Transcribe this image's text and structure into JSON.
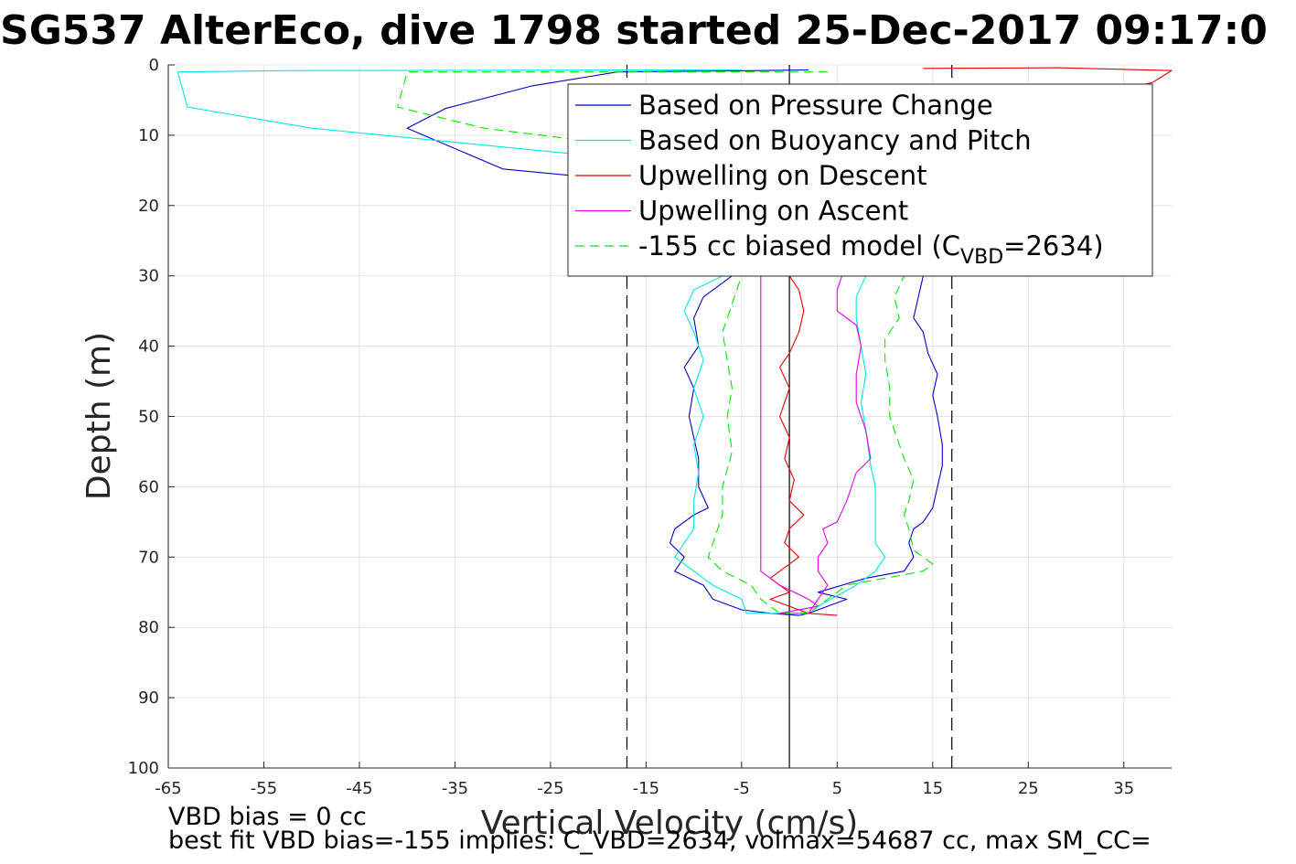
{
  "chart_data": {
    "type": "line",
    "title": "SG537 AlterEco, dive 1798 started 25-Dec-2017 09:17:0",
    "xlabel": "Vertical Velocity (cm/s)",
    "ylabel": "Depth (m)",
    "xlim": [
      -65,
      40
    ],
    "ylim": [
      100,
      0
    ],
    "y_reversed": true,
    "grid": true,
    "legend_position": "top-right",
    "x_ticks": [
      "-65",
      "-55",
      "-45",
      "-35",
      "-25",
      "-15",
      "-5",
      "5",
      "15",
      "25",
      "35"
    ],
    "y_ticks": [
      "0",
      "10",
      "20",
      "30",
      "40",
      "50",
      "60",
      "70",
      "80",
      "90",
      "100"
    ],
    "reference_lines": [
      {
        "name": "zero",
        "x": 0,
        "style": "solid",
        "color": "#000000"
      },
      {
        "name": "left-limit",
        "x": -17,
        "style": "dashed",
        "color": "#000000"
      },
      {
        "name": "right-limit",
        "x": 17,
        "style": "dashed",
        "color": "#000000"
      }
    ],
    "series": [
      {
        "name": "Based on Pressure Change",
        "color": "#0000cc",
        "style": "solid",
        "points": [
          [
            2,
            0.7
          ],
          [
            -3,
            0.8
          ],
          [
            -18,
            1
          ],
          [
            -27,
            3
          ],
          [
            -36,
            6.2
          ],
          [
            -40,
            9
          ],
          [
            -30,
            14.8
          ],
          [
            -13,
            17
          ],
          [
            -5,
            19
          ],
          [
            -6,
            25
          ],
          [
            -8,
            28
          ],
          [
            -6,
            30
          ],
          [
            -9,
            33
          ],
          [
            -10,
            36
          ],
          [
            -9.5,
            40
          ],
          [
            -11,
            43
          ],
          [
            -10,
            46
          ],
          [
            -10.5,
            50
          ],
          [
            -10,
            53
          ],
          [
            -9.5,
            56
          ],
          [
            -9.5,
            60
          ],
          [
            -8.5,
            63
          ],
          [
            -10,
            64
          ],
          [
            -12,
            66
          ],
          [
            -12.5,
            68
          ],
          [
            -11,
            70
          ],
          [
            -12,
            72
          ],
          [
            -9,
            74
          ],
          [
            -8,
            76
          ],
          [
            -6,
            77
          ],
          [
            -5,
            77.5
          ],
          [
            -2,
            78
          ],
          [
            1,
            78.3
          ],
          [
            2,
            78
          ],
          [
            4,
            77
          ],
          [
            6,
            76
          ],
          [
            3,
            75
          ],
          [
            8,
            73
          ],
          [
            12,
            72
          ],
          [
            13,
            70
          ],
          [
            12.5,
            68
          ],
          [
            13,
            66
          ],
          [
            14,
            65
          ],
          [
            15,
            63
          ],
          [
            15.5,
            60
          ],
          [
            16,
            57
          ],
          [
            16,
            54
          ],
          [
            15.5,
            50
          ],
          [
            15,
            47
          ],
          [
            15.5,
            44
          ],
          [
            14.5,
            41
          ],
          [
            14,
            38
          ],
          [
            13,
            36
          ],
          [
            13.5,
            33
          ],
          [
            14,
            30
          ]
        ]
      },
      {
        "name": "Based on Buoyancy and Pitch",
        "color": "#00e6e6",
        "style": "solid",
        "points": [
          [
            -5,
            0.7
          ],
          [
            -52,
            0.8
          ],
          [
            -64,
            1
          ],
          [
            -63,
            6
          ],
          [
            -50,
            9
          ],
          [
            -20,
            13
          ],
          [
            -10,
            14
          ],
          [
            -10,
            20
          ],
          [
            -7,
            28
          ],
          [
            -7,
            30
          ],
          [
            -10,
            32
          ],
          [
            -11,
            35
          ],
          [
            -10,
            38
          ],
          [
            -9,
            42
          ],
          [
            -10,
            46
          ],
          [
            -9,
            50
          ],
          [
            -10,
            54
          ],
          [
            -9.5,
            58
          ],
          [
            -10,
            62
          ],
          [
            -10,
            66
          ],
          [
            -12,
            70
          ],
          [
            -10,
            72
          ],
          [
            -8,
            74
          ],
          [
            -5,
            76
          ],
          [
            -4.5,
            78
          ],
          [
            -1,
            78
          ],
          [
            3,
            77
          ],
          [
            7,
            74
          ],
          [
            9,
            72
          ],
          [
            10,
            70
          ],
          [
            9,
            68
          ],
          [
            9,
            64
          ],
          [
            9,
            60
          ],
          [
            8.5,
            57
          ],
          [
            8,
            52
          ],
          [
            7.5,
            48
          ],
          [
            8,
            44
          ],
          [
            7.5,
            40
          ],
          [
            7,
            36
          ],
          [
            7,
            33
          ],
          [
            8,
            30
          ]
        ]
      },
      {
        "name": "Upwelling on Descent",
        "color": "#e60000",
        "style": "solid",
        "points": [
          [
            14,
            0.5
          ],
          [
            28,
            0.4
          ],
          [
            40,
            0.8
          ],
          [
            38,
            2.5
          ],
          [
            30,
            5
          ],
          [
            22,
            10
          ],
          [
            14,
            16
          ],
          [
            8,
            20
          ],
          [
            5,
            24
          ],
          [
            2,
            28
          ],
          [
            0,
            30
          ],
          [
            1,
            32
          ],
          [
            1.5,
            35
          ],
          [
            1,
            38
          ],
          [
            0,
            41
          ],
          [
            -1,
            43
          ],
          [
            0,
            46
          ],
          [
            -1,
            50
          ],
          [
            0,
            53
          ],
          [
            -0.5,
            56
          ],
          [
            0.5,
            59
          ],
          [
            0,
            62
          ],
          [
            1.5,
            64
          ],
          [
            0,
            66
          ],
          [
            -0.5,
            68
          ],
          [
            1,
            70
          ],
          [
            -1,
            72
          ],
          [
            -2,
            73
          ],
          [
            -1,
            74
          ],
          [
            0,
            75
          ],
          [
            -2,
            76
          ],
          [
            0,
            77
          ],
          [
            2,
            78
          ],
          [
            5,
            78.3
          ]
        ]
      },
      {
        "name": "Upwelling on Ascent",
        "color": "#e600e6",
        "style": "solid",
        "points": [
          [
            -3,
            18
          ],
          [
            -3,
            25
          ],
          [
            -2,
            28
          ],
          [
            -3,
            30
          ],
          [
            -3,
            72
          ],
          [
            -1,
            74
          ],
          [
            2,
            76
          ],
          [
            3,
            77
          ],
          [
            -1,
            78
          ],
          [
            2,
            78
          ],
          [
            3,
            76
          ],
          [
            4,
            74
          ],
          [
            3,
            72
          ],
          [
            3,
            70
          ],
          [
            4,
            68
          ],
          [
            3.5,
            66
          ],
          [
            5,
            65
          ],
          [
            6,
            62
          ],
          [
            7,
            58
          ],
          [
            8.5,
            56
          ],
          [
            8,
            52
          ],
          [
            7,
            48
          ],
          [
            7,
            44
          ],
          [
            7.5,
            40
          ],
          [
            7,
            37
          ],
          [
            5,
            35
          ],
          [
            5,
            32
          ],
          [
            5.5,
            30
          ]
        ]
      },
      {
        "name": "-155 cc biased model (C_VBD=2634)",
        "color": "#00e600",
        "style": "dashed",
        "points": [
          [
            4,
            1
          ],
          [
            -40,
            1
          ],
          [
            -41,
            6
          ],
          [
            -32,
            9
          ],
          [
            -20,
            11
          ],
          [
            -14,
            12
          ],
          [
            -7,
            14
          ],
          [
            -6,
            20
          ],
          [
            -5,
            30
          ],
          [
            -6,
            34
          ],
          [
            -7,
            38
          ],
          [
            -6.5,
            42
          ],
          [
            -6,
            46
          ],
          [
            -6.5,
            50
          ],
          [
            -6,
            55
          ],
          [
            -7,
            60
          ],
          [
            -7,
            64
          ],
          [
            -8,
            68
          ],
          [
            -8.5,
            70
          ],
          [
            -7,
            72
          ],
          [
            -4,
            74
          ],
          [
            -3,
            76
          ],
          [
            -1,
            78
          ],
          [
            2,
            78
          ],
          [
            4,
            76
          ],
          [
            6,
            74
          ],
          [
            10,
            73
          ],
          [
            14,
            72
          ],
          [
            15,
            71
          ],
          [
            13,
            69
          ],
          [
            12.5,
            66
          ],
          [
            12,
            64
          ],
          [
            12.5,
            62
          ],
          [
            13,
            59
          ],
          [
            12,
            56
          ],
          [
            11,
            52
          ],
          [
            10.5,
            50
          ],
          [
            10.5,
            46
          ],
          [
            10,
            42
          ],
          [
            10,
            39
          ],
          [
            11.5,
            36
          ],
          [
            11,
            33
          ],
          [
            12,
            30
          ]
        ]
      }
    ]
  },
  "legend": {
    "entries": [
      {
        "label": "Based on Pressure Change",
        "color": "#0000cc",
        "style": "solid"
      },
      {
        "label": "Based on Buoyancy and Pitch",
        "color": "#00e6e6",
        "style": "solid"
      },
      {
        "label": "Upwelling on Descent",
        "color": "#e60000",
        "style": "solid"
      },
      {
        "label": "Upwelling on Ascent",
        "color": "#e600e6",
        "style": "solid"
      },
      {
        "label_prefix": "-155 cc biased model (C",
        "label_sub": "VBD",
        "label_suffix": "=2634)",
        "color": "#00e600",
        "style": "dashed"
      }
    ]
  },
  "annotations": {
    "vbd_bias": "VBD bias = 0 cc",
    "best_fit": "best fit VBD bias=-155 implies: C_VBD=2634, volmax=54687 cc, max SM_CC="
  }
}
